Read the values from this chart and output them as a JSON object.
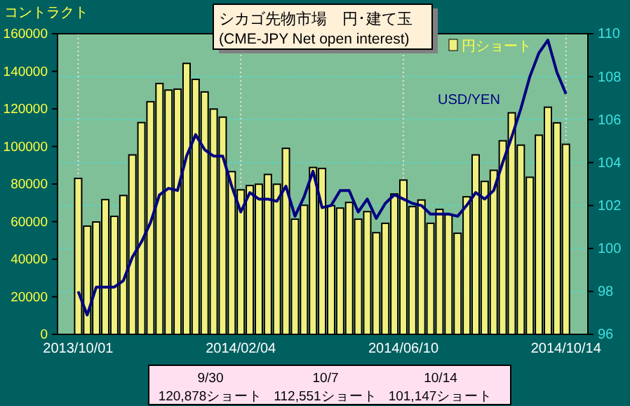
{
  "chart_data": {
    "type": "bar",
    "title": "シカゴ先物市場　円･建て玉",
    "subtitle": "(CME-JPY Net open interest)",
    "ylabel": "コントラクト",
    "x": [
      "2013-10-01",
      "2013-10-08",
      "2013-10-15",
      "2013-10-22",
      "2013-10-29",
      "2013-11-05",
      "2013-11-12",
      "2013-11-19",
      "2013-11-26",
      "2013-12-03",
      "2013-12-10",
      "2013-12-17",
      "2013-12-24",
      "2013-12-31",
      "2014-01-07",
      "2014-01-14",
      "2014-01-21",
      "2014-01-28",
      "2014-02-04",
      "2014-02-11",
      "2014-02-18",
      "2014-02-25",
      "2014-03-04",
      "2014-03-11",
      "2014-03-18",
      "2014-03-25",
      "2014-04-01",
      "2014-04-08",
      "2014-04-15",
      "2014-04-22",
      "2014-04-29",
      "2014-05-06",
      "2014-05-13",
      "2014-05-20",
      "2014-05-27",
      "2014-06-03",
      "2014-06-10",
      "2014-06-17",
      "2014-06-24",
      "2014-07-01",
      "2014-07-08",
      "2014-07-15",
      "2014-07-22",
      "2014-07-29",
      "2014-08-05",
      "2014-08-12",
      "2014-08-19",
      "2014-08-26",
      "2014-09-02",
      "2014-09-09",
      "2014-09-16",
      "2014-09-23",
      "2014-09-30",
      "2014-10-07",
      "2014-10-14"
    ],
    "series": [
      {
        "name": "円ショート",
        "color": "#f0f080",
        "values": [
          83000,
          57600,
          59800,
          71700,
          62800,
          73900,
          95500,
          112700,
          123800,
          133500,
          130000,
          130500,
          144200,
          135700,
          129000,
          119900,
          115600,
          86600,
          76900,
          79200,
          79900,
          85100,
          79900,
          99000,
          61300,
          68700,
          88800,
          88300,
          68500,
          67200,
          70200,
          61300,
          65300,
          54100,
          59100,
          74700,
          82100,
          68000,
          71500,
          59100,
          66500,
          63800,
          53800,
          73200,
          95500,
          81400,
          87300,
          103000,
          117900,
          100700,
          83600,
          106000,
          120878,
          112551,
          101147
        ]
      },
      {
        "name": "USD/YEN",
        "type": "line",
        "axis": "y2",
        "color": "#000080",
        "values": [
          98.0,
          96.9,
          98.2,
          98.2,
          98.2,
          98.5,
          99.6,
          100.3,
          101.2,
          102.5,
          102.8,
          102.7,
          104.3,
          105.3,
          104.6,
          104.3,
          104.3,
          102.9,
          101.7,
          102.6,
          102.3,
          102.3,
          102.2,
          102.9,
          101.5,
          102.4,
          103.6,
          101.9,
          102.0,
          102.7,
          102.7,
          101.7,
          102.3,
          101.4,
          102.1,
          102.5,
          102.3,
          102.1,
          102.0,
          101.6,
          101.6,
          101.6,
          101.5,
          102.0,
          102.6,
          102.3,
          102.7,
          104.0,
          105.2,
          106.5,
          108.0,
          109.1,
          109.7,
          108.2,
          107.2
        ]
      }
    ],
    "xlim": [
      "2013-09-15",
      "2014-10-31"
    ],
    "xticks": [
      {
        "value": "2013-10-01",
        "label": "2013/10/01"
      },
      {
        "value": "2014-02-04",
        "label": "2014/02/04"
      },
      {
        "value": "2014-06-10",
        "label": "2014/06/10"
      },
      {
        "value": "2014-10-14",
        "label": "2014/10/14"
      }
    ],
    "ylim": [
      0,
      160000
    ],
    "yticks": [
      0,
      20000,
      40000,
      60000,
      80000,
      100000,
      120000,
      140000,
      160000
    ],
    "y2lim": [
      96,
      110
    ],
    "y2ticks": [
      96,
      98,
      100,
      102,
      104,
      106,
      108,
      110
    ],
    "grid": true,
    "marker": "none",
    "line_style": "solid",
    "annotations": [
      "9/30",
      "10/7",
      "10/14",
      "120,878ショート",
      "112,551ショート",
      "101,147ショート"
    ]
  }
}
